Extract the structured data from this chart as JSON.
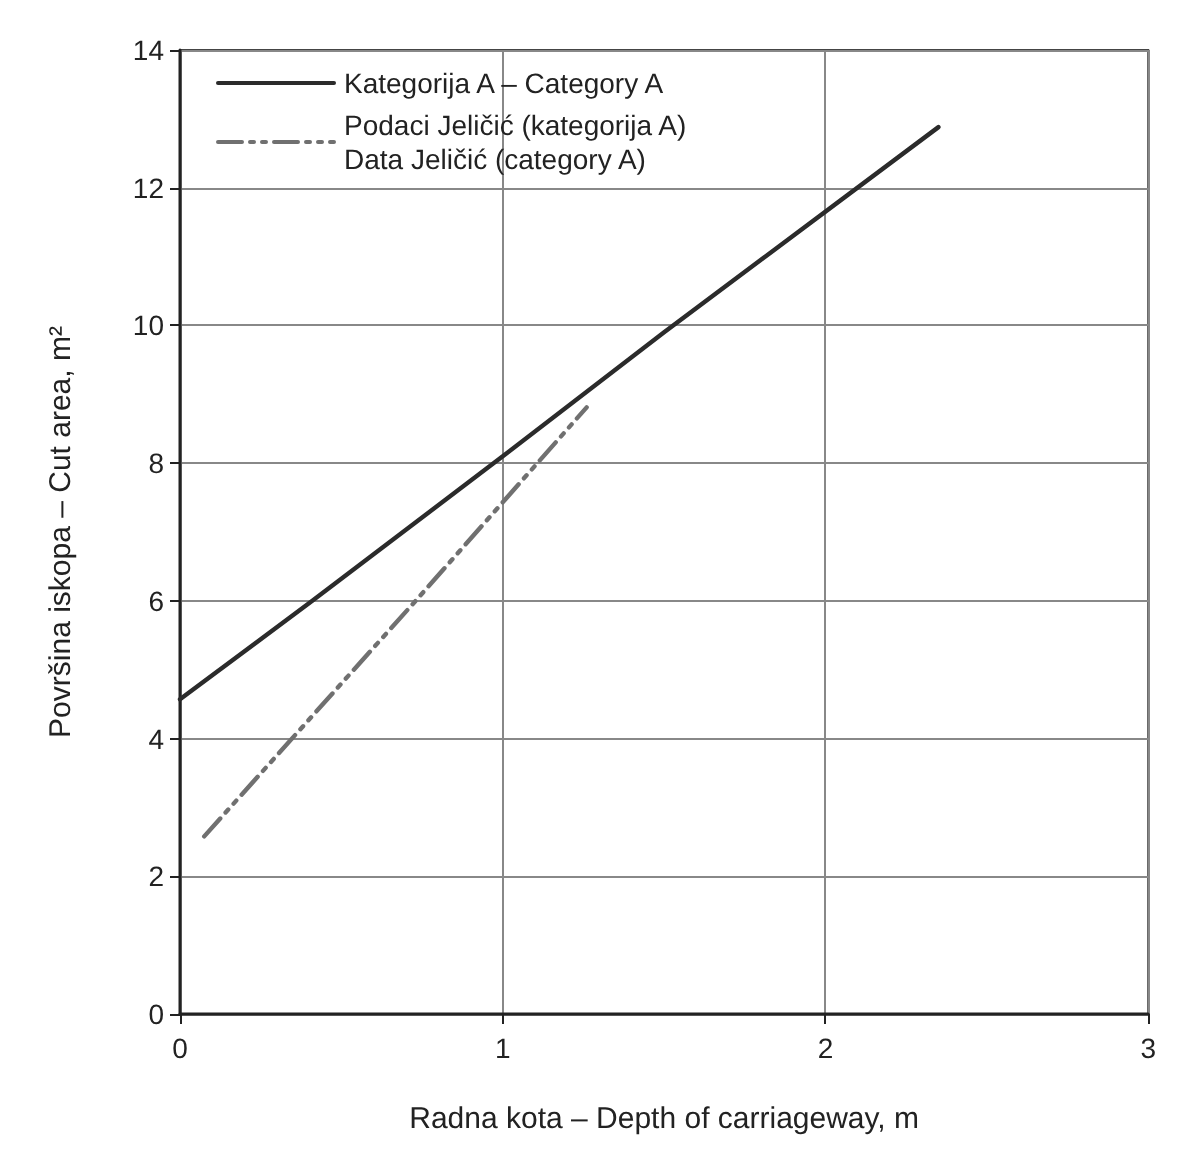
{
  "chart_data": {
    "type": "line",
    "xlabel": "Radna kota – Depth of carriageway, m",
    "ylabel": "Površina iskopa – Cut area, m²",
    "xlim": [
      0,
      3
    ],
    "xticks": [
      0,
      1,
      2,
      3
    ],
    "ylim": [
      0,
      14
    ],
    "yticks": [
      0,
      2,
      4,
      6,
      8,
      10,
      12,
      14
    ],
    "grid": true,
    "legend": "top left",
    "marker": "none",
    "series": [
      {
        "name": "Kategorija A – Category A",
        "color": "#2b2b2b",
        "line_style": "solid",
        "x": [
          0,
          0.41,
          1,
          1.5,
          2.35
        ],
        "values": [
          4.57,
          6.0,
          8.1,
          9.9,
          12.88
        ]
      },
      {
        "name": "Podaci Jeličić (kategorija A)\nData Jeličić (category A)",
        "color": "#707070",
        "line_style": "dashdot",
        "x": [
          0.075,
          0.73,
          1.26
        ],
        "values": [
          2.58,
          6.0,
          8.81
        ]
      }
    ]
  }
}
